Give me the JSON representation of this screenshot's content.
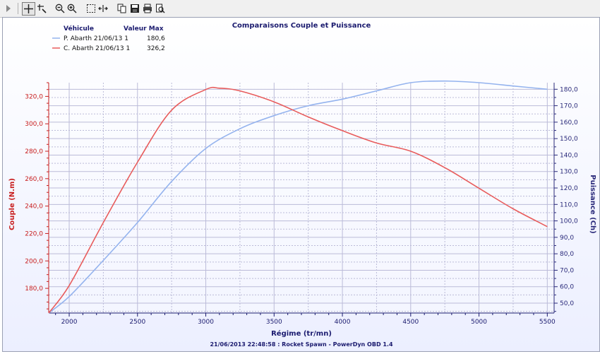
{
  "toolbar": {
    "icons": [
      "play-arrow-icon",
      "crosshair-icon",
      "pan-icon",
      "zoom-out-icon",
      "zoom-in-icon",
      "select-box-icon",
      "fit-width-icon",
      "copy-icon",
      "save-icon",
      "print-icon",
      "print-preview-icon"
    ]
  },
  "colors": {
    "power": "#94b3ee",
    "torque": "#e85c5c",
    "title": "#1a1a6e",
    "left_axis_text": "#c81e1e",
    "right_axis_text": "#2a2a7a",
    "grid": "#bbbbd8"
  },
  "legend": {
    "header_vehicle": "Véhicule",
    "header_max": "Valeur Max"
  },
  "chart_data": {
    "type": "line",
    "title": "Comparaisons Couple et Puissance",
    "xlabel": "Régime (tr/mn)",
    "ylabel_left": "Couple (N.m)",
    "ylabel_right": "Puissance (Ch)",
    "footer": "21/06/2013 22:48:58 : Rocket Spawn - PowerDyn OBD 1.4",
    "xlim": [
      1850,
      5550
    ],
    "ylim_left": [
      162,
      330
    ],
    "ylim_right": [
      44,
      184
    ],
    "x_ticks": [
      "2000",
      "2500",
      "3000",
      "3500",
      "4000",
      "4500",
      "5000",
      "5500"
    ],
    "left_ticks": [
      "180,0",
      "200,0",
      "220,0",
      "240,0",
      "260,0",
      "280,0",
      "300,0",
      "320,0"
    ],
    "right_ticks": [
      "50,0",
      "60,0",
      "70,0",
      "80,0",
      "90,0",
      "100,0",
      "110,0",
      "120,0",
      "130,0",
      "140,0",
      "150,0",
      "160,0",
      "170,0",
      "180,0"
    ],
    "grid": true,
    "legend_position": "top-left",
    "series": [
      {
        "name": "P. Abarth 21/06/13 1",
        "max": "180,6",
        "axis": "right",
        "color": "#94b3ee",
        "x": [
          1850,
          2000,
          2250,
          2500,
          2750,
          3000,
          3250,
          3500,
          3750,
          4000,
          4250,
          4500,
          4750,
          5000,
          5250,
          5500
        ],
        "y": [
          44,
          54,
          76,
          99,
          124,
          144,
          156,
          164,
          170,
          174,
          179,
          184,
          185,
          184,
          182,
          180
        ]
      },
      {
        "name": "C. Abarth 21/06/13 1",
        "max": "326,2",
        "axis": "left",
        "color": "#e85c5c",
        "x": [
          1850,
          2000,
          2250,
          2500,
          2750,
          3000,
          3100,
          3250,
          3500,
          3750,
          4000,
          4250,
          4500,
          4750,
          5000,
          5250,
          5500
        ],
        "y": [
          162,
          182,
          228,
          272,
          310,
          325,
          326,
          324,
          316,
          305,
          295,
          286,
          280,
          268,
          253,
          238,
          225
        ]
      }
    ]
  }
}
